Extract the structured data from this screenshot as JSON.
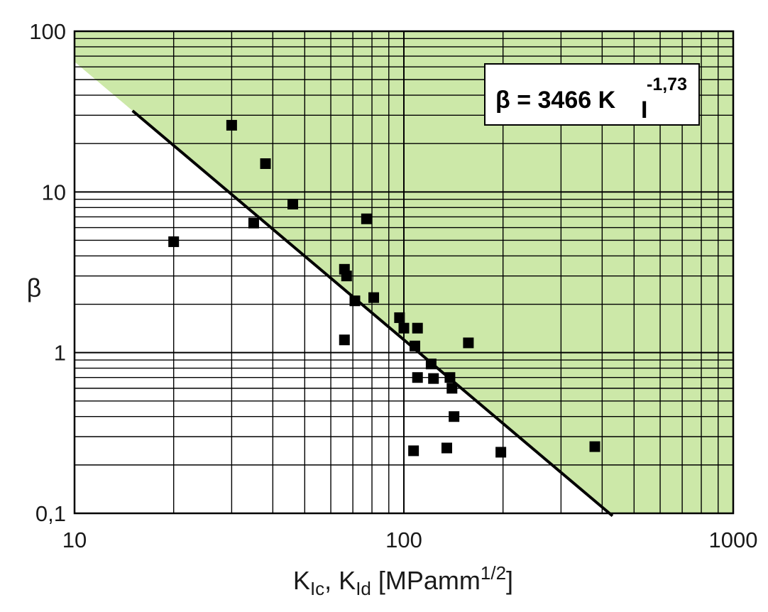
{
  "chart_data": {
    "type": "scatter",
    "title": "",
    "xlabel": {
      "parts": [
        "K",
        "Ic",
        ", K",
        "Id",
        " [MPamm",
        "1/2",
        "]"
      ]
    },
    "ylabel": "β",
    "x_scale": "log",
    "y_scale": "log",
    "xlim": [
      10,
      1000
    ],
    "ylim": [
      0.1,
      100
    ],
    "x_ticks": [
      {
        "value": 10,
        "label": "10"
      },
      {
        "value": 100,
        "label": "100"
      },
      {
        "value": 1000,
        "label": "1000"
      }
    ],
    "y_ticks": [
      {
        "value": 100,
        "label": "100"
      },
      {
        "value": 10,
        "label": "10"
      },
      {
        "value": 1,
        "label": "1"
      },
      {
        "value": 0.1,
        "label": "0,1"
      }
    ],
    "grid": true,
    "shaded_region": {
      "description": "region above fitted curve",
      "color": "#cce8a8"
    },
    "fit_line": {
      "a": 3466,
      "b": -1.73,
      "x_range": [
        15,
        430
      ]
    },
    "annotation": {
      "prefix": "β = 3466 K",
      "subscript": "I",
      "superscript": "-1,73"
    },
    "colors": {
      "fill": "#cce8a8",
      "grid": "#000000",
      "points": "#000000",
      "line": "#000000"
    },
    "points": [
      {
        "x": 20,
        "y": 4.9
      },
      {
        "x": 30,
        "y": 26
      },
      {
        "x": 35,
        "y": 6.4
      },
      {
        "x": 38,
        "y": 15
      },
      {
        "x": 46,
        "y": 8.4
      },
      {
        "x": 66,
        "y": 3.3
      },
      {
        "x": 67,
        "y": 3.0
      },
      {
        "x": 66,
        "y": 1.2
      },
      {
        "x": 71,
        "y": 2.1
      },
      {
        "x": 77,
        "y": 6.8
      },
      {
        "x": 81,
        "y": 2.2
      },
      {
        "x": 97,
        "y": 1.65
      },
      {
        "x": 100,
        "y": 1.42
      },
      {
        "x": 108,
        "y": 1.1
      },
      {
        "x": 110,
        "y": 1.42
      },
      {
        "x": 110,
        "y": 0.7
      },
      {
        "x": 121,
        "y": 0.85
      },
      {
        "x": 123,
        "y": 0.69
      },
      {
        "x": 138,
        "y": 0.7
      },
      {
        "x": 140,
        "y": 0.6
      },
      {
        "x": 142,
        "y": 0.4
      },
      {
        "x": 157,
        "y": 1.15
      },
      {
        "x": 107,
        "y": 0.245
      },
      {
        "x": 135,
        "y": 0.255
      },
      {
        "x": 197,
        "y": 0.24
      },
      {
        "x": 380,
        "y": 0.26
      }
    ]
  }
}
